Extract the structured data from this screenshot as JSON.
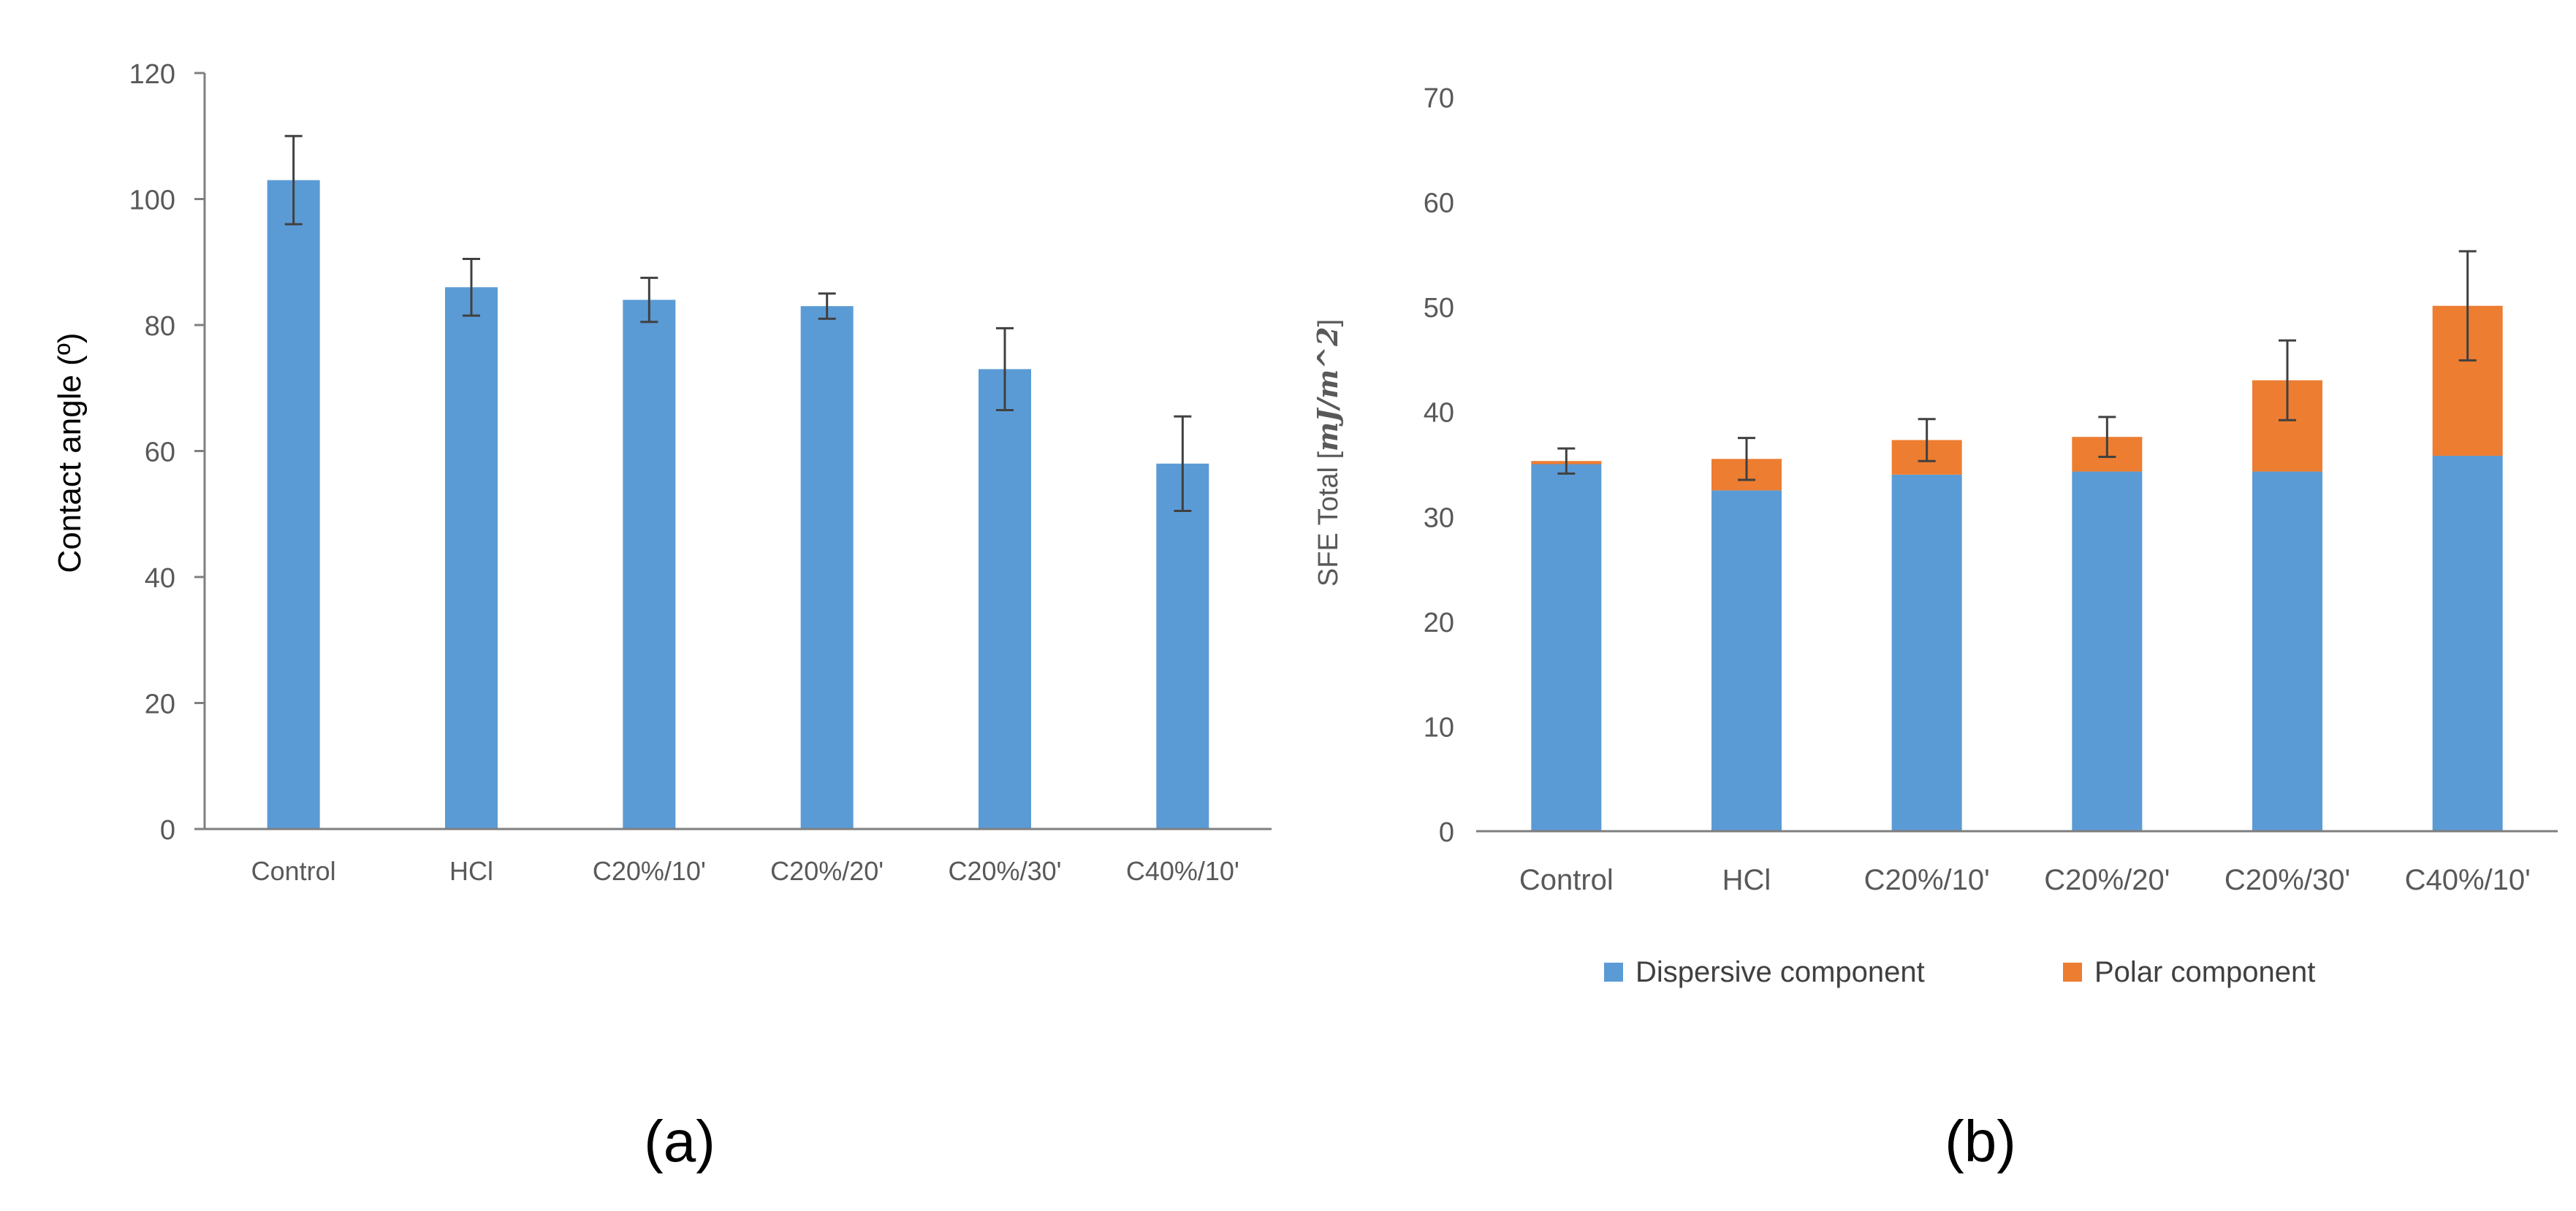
{
  "chart_data": [
    {
      "type": "bar",
      "panel_label": "(a)",
      "categories": [
        "Control",
        "HCl",
        "C20%/10'",
        "C20%/20'",
        "C20%/30'",
        "C40%/10'"
      ],
      "series": [
        {
          "name": "",
          "values": [
            103,
            86,
            84,
            83,
            73,
            58
          ],
          "errors": [
            7,
            4.5,
            3.5,
            2,
            6.5,
            7.5
          ],
          "color": "#5b9bd5"
        }
      ],
      "ylabel": "Contact angle (º)",
      "ylim": [
        0,
        120
      ],
      "yticks": [
        0,
        20,
        40,
        60,
        80,
        100,
        120
      ],
      "grid": false
    },
    {
      "type": "bar",
      "stacked": true,
      "panel_label": "(b)",
      "categories": [
        "Control",
        "HCl",
        "C20%/10'",
        "C20%/20'",
        "C20%/30'",
        "C40%/10'"
      ],
      "series": [
        {
          "name": "Dispersive component",
          "values": [
            35,
            32.5,
            34,
            34.3,
            34.3,
            35.8
          ],
          "color": "#5b9bd5"
        },
        {
          "name": "Polar component",
          "values": [
            0.3,
            3,
            3.3,
            3.3,
            8.7,
            14.3
          ],
          "color": "#ed7d31"
        }
      ],
      "totals": [
        35.3,
        35.5,
        37.3,
        37.6,
        43.0,
        50.1
      ],
      "errors": [
        1.2,
        2,
        2,
        1.9,
        3.8,
        5.2
      ],
      "ylabel_prefix": "SFE Total [",
      "ylabel_unit": "mJ/m^2",
      "ylabel_suffix": "]",
      "ylim": [
        0,
        70
      ],
      "yticks": [
        0,
        10,
        20,
        30,
        40,
        50,
        60,
        70
      ],
      "legend_position": "bottom",
      "grid": false
    }
  ]
}
